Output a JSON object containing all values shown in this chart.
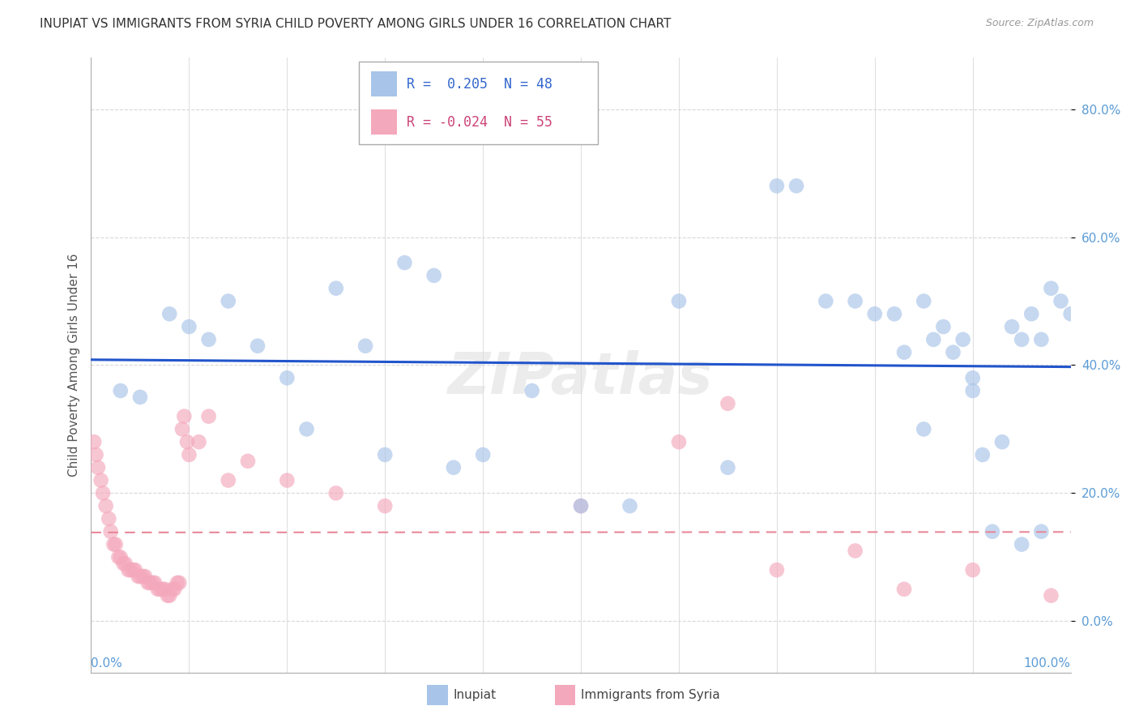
{
  "title": "INUPIAT VS IMMIGRANTS FROM SYRIA CHILD POVERTY AMONG GIRLS UNDER 16 CORRELATION CHART",
  "source": "Source: ZipAtlas.com",
  "ylabel": "Child Poverty Among Girls Under 16",
  "ytick_values": [
    0,
    20,
    40,
    60,
    80
  ],
  "xlim": [
    0,
    100
  ],
  "ylim": [
    -8,
    88
  ],
  "inupiat_color": "#a8c4e8",
  "syria_color": "#f4a8bc",
  "trendline_inupiat_color": "#2255cc",
  "trendline_syria_color": "#e88899",
  "grid_color": "#d8d8d8",
  "background_color": "#ffffff",
  "watermark": "ZIPatlas",
  "inupiat_R": "0.205",
  "inupiat_N": "48",
  "syria_R": "-0.024",
  "syria_N": "55",
  "inupiat_x": [
    3,
    5,
    8,
    10,
    12,
    14,
    17,
    20,
    22,
    25,
    28,
    30,
    32,
    35,
    37,
    40,
    45,
    50,
    55,
    60,
    65,
    70,
    72,
    75,
    78,
    80,
    82,
    83,
    85,
    86,
    87,
    88,
    89,
    90,
    91,
    92,
    93,
    94,
    95,
    96,
    97,
    98,
    99,
    100,
    85,
    90,
    95,
    97
  ],
  "inupiat_y": [
    36,
    35,
    48,
    46,
    44,
    50,
    43,
    38,
    30,
    52,
    43,
    26,
    56,
    54,
    24,
    26,
    36,
    18,
    18,
    50,
    24,
    68,
    68,
    50,
    50,
    48,
    48,
    42,
    50,
    44,
    46,
    42,
    44,
    36,
    26,
    14,
    28,
    46,
    44,
    48,
    44,
    52,
    50,
    48,
    30,
    38,
    12,
    14
  ],
  "syria_x": [
    0.3,
    0.5,
    0.7,
    1.0,
    1.2,
    1.5,
    1.8,
    2.0,
    2.3,
    2.5,
    2.8,
    3.0,
    3.3,
    3.5,
    3.8,
    4.0,
    4.3,
    4.5,
    4.8,
    5.0,
    5.3,
    5.5,
    5.8,
    6.0,
    6.3,
    6.5,
    6.8,
    7.0,
    7.3,
    7.5,
    7.8,
    8.0,
    8.3,
    8.5,
    8.8,
    9.0,
    9.3,
    9.5,
    9.8,
    10.0,
    11,
    12,
    14,
    16,
    20,
    25,
    30,
    50,
    60,
    65,
    70,
    78,
    83,
    90,
    98
  ],
  "syria_y": [
    28,
    26,
    24,
    22,
    20,
    18,
    16,
    14,
    12,
    12,
    10,
    10,
    9,
    9,
    8,
    8,
    8,
    8,
    7,
    7,
    7,
    7,
    6,
    6,
    6,
    6,
    5,
    5,
    5,
    5,
    4,
    4,
    5,
    5,
    6,
    6,
    30,
    32,
    28,
    26,
    28,
    32,
    22,
    25,
    22,
    20,
    18,
    18,
    28,
    34,
    8,
    11,
    5,
    8,
    4
  ]
}
